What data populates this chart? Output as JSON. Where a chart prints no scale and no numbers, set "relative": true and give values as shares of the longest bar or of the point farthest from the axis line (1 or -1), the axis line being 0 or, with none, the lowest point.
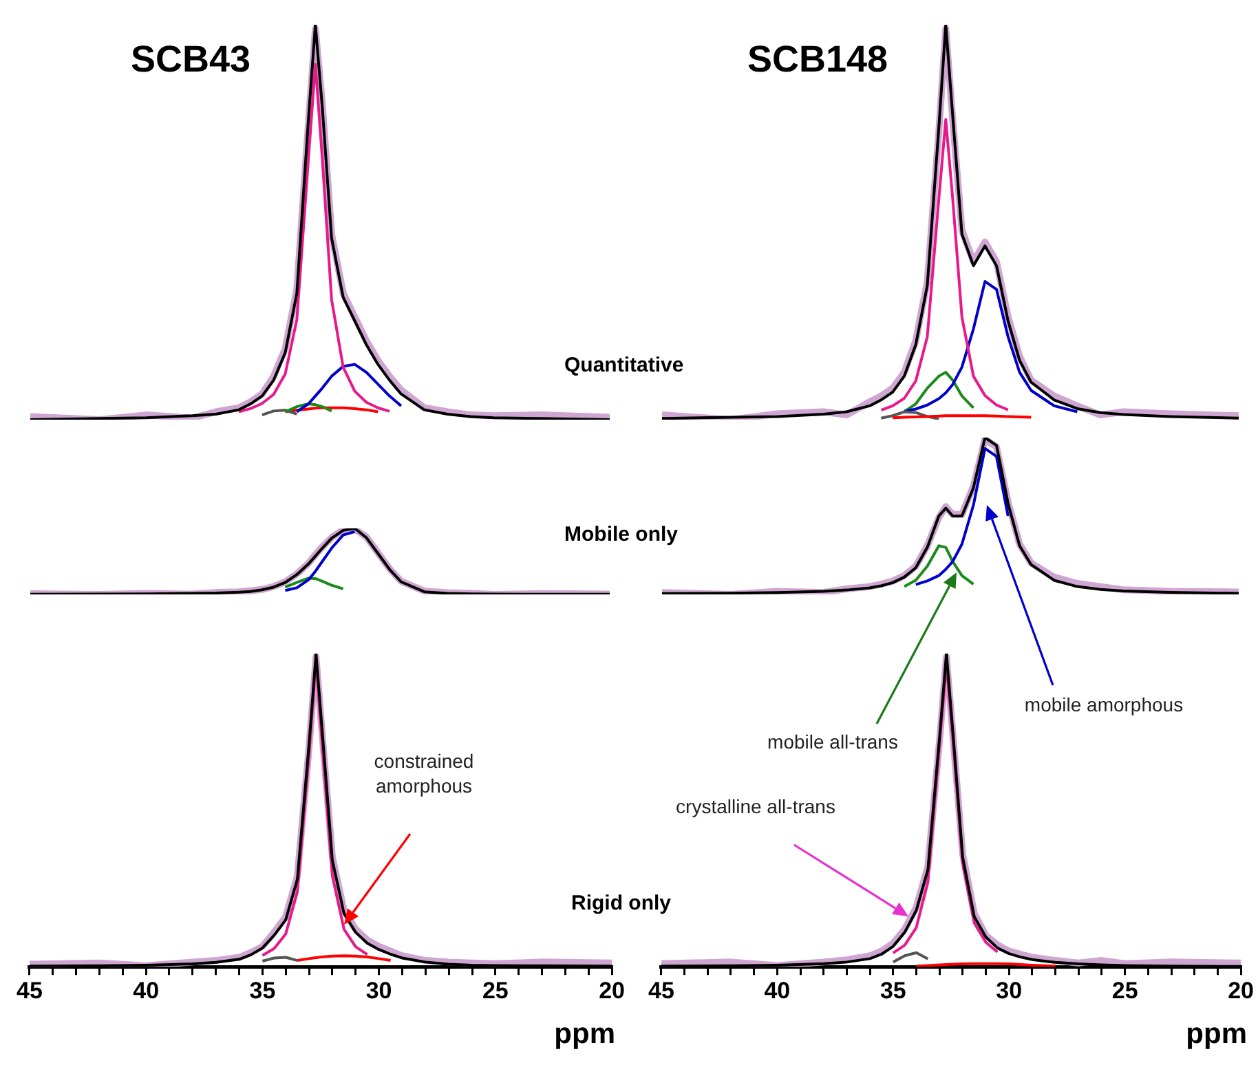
{
  "chart_data": [
    {
      "type": "line",
      "title": "SCB43",
      "relative": true,
      "xlim": [
        45,
        20
      ],
      "tick_labels": false,
      "legend": false,
      "grid": false,
      "x": [
        45,
        42,
        40,
        38,
        37,
        36,
        35.5,
        35,
        34.5,
        34,
        33.5,
        33,
        32.7,
        32.4,
        32,
        31.5,
        31,
        30.5,
        30,
        29.5,
        29,
        28,
        27,
        26,
        25,
        23,
        20
      ],
      "series": [
        {
          "color": "#cfa6d2",
          "values": [
            0.008,
            0,
            0.012,
            0.004,
            0.02,
            0.03,
            0.045,
            0.065,
            0.11,
            0.18,
            0.33,
            0.75,
            0.99,
            0.8,
            0.47,
            0.32,
            0.26,
            0.2,
            0.15,
            0.11,
            0.075,
            0.03,
            0.02,
            0.012,
            0.01,
            0.012,
            0.006
          ]
        },
        {
          "color": "#ff0000",
          "values": [
            null,
            null,
            null,
            null,
            null,
            null,
            null,
            null,
            null,
            0.02,
            0.024,
            0.027,
            0.029,
            0.03,
            0.03,
            0.03,
            0.028,
            0.025,
            0.02,
            null,
            null,
            null,
            null,
            null,
            null,
            null,
            null
          ]
        },
        {
          "color": "#555555",
          "values": [
            null,
            null,
            null,
            null,
            null,
            null,
            null,
            0.012,
            0.022,
            0.024,
            0.014,
            null,
            null,
            null,
            null,
            null,
            null,
            null,
            null,
            null,
            null,
            null,
            null,
            null,
            null,
            null,
            null
          ]
        },
        {
          "color": "#1a8a1a",
          "values": [
            null,
            null,
            null,
            null,
            null,
            null,
            null,
            null,
            null,
            0.02,
            0.033,
            0.04,
            0.038,
            0.033,
            0.022,
            null,
            null,
            null,
            null,
            null,
            null,
            null,
            null,
            null,
            null,
            null,
            null
          ]
        },
        {
          "color": "#0000cc",
          "values": [
            null,
            null,
            null,
            null,
            null,
            null,
            null,
            null,
            null,
            null,
            0.02,
            0.04,
            0.06,
            0.08,
            0.11,
            0.135,
            0.14,
            0.12,
            0.09,
            0.06,
            0.035,
            null,
            null,
            null,
            null,
            null,
            null
          ]
        },
        {
          "color": "#e8198b",
          "values": [
            null,
            null,
            null,
            null,
            null,
            0.02,
            0.028,
            0.041,
            0.064,
            0.116,
            0.253,
            0.66,
            0.9,
            0.66,
            0.304,
            0.133,
            0.072,
            0.044,
            0.03,
            0.021,
            null,
            null,
            null,
            null,
            null,
            null,
            null
          ]
        },
        {
          "color": "#000000",
          "values": [
            0,
            0.003,
            0.005,
            0.01,
            0.014,
            0.025,
            0.04,
            0.06,
            0.1,
            0.17,
            0.32,
            0.76,
            1,
            0.79,
            0.46,
            0.31,
            0.25,
            0.19,
            0.14,
            0.1,
            0.065,
            0.025,
            0.014,
            0.008,
            0.005,
            0.003,
            0
          ]
        }
      ]
    },
    {
      "type": "line",
      "title": "SCB148",
      "relative": true,
      "xlim": [
        45,
        20
      ],
      "tick_labels": false,
      "legend": false,
      "grid": false,
      "annotations": [
        "Quantitative"
      ],
      "x": [
        45,
        42,
        40,
        38,
        37,
        36,
        35.5,
        35,
        34.5,
        34,
        33.5,
        33,
        32.7,
        32.4,
        32,
        31.5,
        31,
        30.5,
        30,
        29.5,
        29,
        28,
        27,
        26,
        25,
        23,
        20
      ],
      "series": [
        {
          "color": "#cfa6d2",
          "values": [
            0.012,
            0,
            0.015,
            0.02,
            0.012,
            0.045,
            0.06,
            0.08,
            0.12,
            0.2,
            0.35,
            0.73,
            0.99,
            0.76,
            0.48,
            0.4,
            0.45,
            0.4,
            0.26,
            0.16,
            0.1,
            0.06,
            0.035,
            0.012,
            0.02,
            0.015,
            0.01
          ]
        },
        {
          "color": "#1a8a1a",
          "values": [
            null,
            null,
            null,
            null,
            null,
            null,
            null,
            null,
            0.02,
            0.04,
            0.08,
            0.11,
            0.12,
            0.1,
            0.06,
            0.03,
            null,
            null,
            null,
            null,
            null,
            null,
            null,
            null,
            null,
            null,
            null
          ]
        },
        {
          "color": "#0000cc",
          "values": [
            null,
            null,
            null,
            null,
            null,
            null,
            null,
            null,
            0.021,
            0.027,
            0.037,
            0.053,
            0.068,
            0.089,
            0.133,
            0.23,
            0.35,
            0.33,
            0.21,
            0.12,
            0.074,
            0.035,
            0.02,
            null,
            null,
            null,
            null
          ]
        },
        {
          "color": "#e8198b",
          "values": [
            null,
            null,
            null,
            null,
            null,
            null,
            0.024,
            0.035,
            0.054,
            0.098,
            0.21,
            0.56,
            0.76,
            0.56,
            0.26,
            0.11,
            0.061,
            0.037,
            0.025,
            null,
            null,
            null,
            null,
            null,
            null,
            null,
            null
          ]
        },
        {
          "color": "#000000",
          "values": [
            0.003,
            0.006,
            0.008,
            0.014,
            0.02,
            0.035,
            0.05,
            0.07,
            0.11,
            0.19,
            0.34,
            0.74,
            1,
            0.77,
            0.47,
            0.39,
            0.44,
            0.39,
            0.25,
            0.15,
            0.095,
            0.05,
            0.028,
            0.018,
            0.013,
            0.008,
            0.004
          ]
        },
        {
          "color": "#555555",
          "values": [
            null,
            null,
            null,
            null,
            null,
            null,
            0.004,
            0.01,
            0.02,
            0.018,
            0.008,
            0.002,
            null,
            null,
            null,
            null,
            null,
            null,
            null,
            null,
            null,
            null,
            null,
            null,
            null,
            null,
            null
          ]
        },
        {
          "color": "#ff0000",
          "values": [
            null,
            null,
            null,
            null,
            null,
            null,
            null,
            0.005,
            0.006,
            0.007,
            0.008,
            0.009,
            0.01,
            0.01,
            0.01,
            0.01,
            0.01,
            0.009,
            0.008,
            0.007,
            0.006,
            null,
            null,
            null,
            null,
            null,
            null
          ]
        }
      ]
    },
    {
      "type": "line",
      "relative": true,
      "xlim": [
        45,
        20
      ],
      "tick_labels": false,
      "legend": false,
      "grid": false,
      "x": [
        45,
        42,
        40,
        38,
        37,
        36,
        35.5,
        35,
        34.5,
        34,
        33.5,
        33,
        32.7,
        32.4,
        32,
        31.5,
        31,
        30.5,
        30,
        29.5,
        29,
        28,
        27,
        26,
        25,
        23,
        20
      ],
      "series": [
        {
          "color": "#cfa6d2",
          "values": [
            0.01,
            0,
            0.015,
            0.005,
            0.03,
            0.04,
            0.055,
            0.075,
            0.12,
            0.19,
            0.31,
            0.47,
            0.6,
            0.72,
            0.86,
            0.98,
            0.99,
            0.87,
            0.63,
            0.39,
            0.2,
            0.05,
            0.025,
            0.015,
            0,
            0.012,
            0.006
          ]
        },
        {
          "color": "#1a8a1a",
          "values": [
            null,
            null,
            null,
            null,
            null,
            null,
            null,
            null,
            null,
            0.11,
            0.18,
            0.245,
            0.24,
            0.2,
            0.14,
            0.085,
            null,
            null,
            null,
            null,
            null,
            null,
            null,
            null,
            null,
            null,
            null
          ]
        },
        {
          "color": "#0000cc",
          "values": [
            null,
            null,
            null,
            null,
            null,
            null,
            null,
            null,
            null,
            0.06,
            0.1,
            0.22,
            0.35,
            0.5,
            0.7,
            0.9,
            0.95,
            null,
            null,
            null,
            null,
            null,
            null,
            null,
            null,
            null,
            null
          ]
        },
        {
          "color": "#000000",
          "values": [
            0.002,
            0.005,
            0.008,
            0.015,
            0.02,
            0.035,
            0.045,
            0.07,
            0.11,
            0.18,
            0.3,
            0.46,
            0.58,
            0.7,
            0.85,
            0.97,
            1,
            0.86,
            0.62,
            0.38,
            0.19,
            0.04,
            0.015,
            0.008,
            0.005,
            0.003,
            0.002
          ]
        }
      ]
    },
    {
      "type": "line",
      "relative": true,
      "xlim": [
        45,
        20
      ],
      "tick_labels": false,
      "legend": false,
      "grid": false,
      "annotations": [
        "Mobile only",
        "mobile all-trans",
        "mobile amorphous"
      ],
      "x": [
        45,
        42,
        40,
        38,
        37,
        36,
        35.5,
        35,
        34.5,
        34,
        33.5,
        33,
        32.7,
        32.4,
        32,
        31.5,
        31,
        30.5,
        30,
        29.5,
        29,
        28,
        27,
        26,
        25,
        23,
        20
      ],
      "series": [
        {
          "color": "#cfa6d2",
          "values": [
            0.012,
            0,
            0.02,
            0.012,
            0.035,
            0.05,
            0.065,
            0.085,
            0.12,
            0.18,
            0.31,
            0.49,
            0.56,
            0.51,
            0.51,
            0.69,
            0.99,
            0.94,
            0.59,
            0.32,
            0.2,
            0.11,
            0.07,
            0.05,
            0.03,
            0.02,
            0.015
          ]
        },
        {
          "color": "#1a8a1a",
          "values": [
            null,
            null,
            null,
            null,
            null,
            null,
            null,
            null,
            0.05,
            0.09,
            0.18,
            0.31,
            0.3,
            0.21,
            0.12,
            0.065,
            null,
            null,
            null,
            null,
            null,
            null,
            null,
            null,
            null,
            null,
            null
          ]
        },
        {
          "color": "#0000cc",
          "values": [
            null,
            null,
            null,
            null,
            null,
            null,
            null,
            null,
            null,
            0.063,
            0.086,
            0.12,
            0.16,
            0.21,
            0.32,
            0.57,
            0.93,
            0.88,
            0.5,
            null,
            null,
            null,
            null,
            null,
            null,
            null,
            null
          ]
        },
        {
          "color": "#000000",
          "values": [
            0.005,
            0.008,
            0.012,
            0.02,
            0.028,
            0.042,
            0.055,
            0.075,
            0.11,
            0.17,
            0.3,
            0.5,
            0.55,
            0.5,
            0.5,
            0.68,
            1,
            0.95,
            0.58,
            0.31,
            0.19,
            0.09,
            0.05,
            0.032,
            0.022,
            0.013,
            0.007
          ]
        }
      ]
    },
    {
      "type": "line",
      "relative": true,
      "xlim": [
        45,
        20
      ],
      "tick_labels": "x",
      "legend": false,
      "grid": false,
      "xlabel": "ppm",
      "annotations": [
        "constrained amorphous"
      ],
      "xticks": [
        45,
        {
          "value": 44,
          "label": null
        },
        {
          "value": 43,
          "label": null
        },
        {
          "value": 42,
          "label": null
        },
        {
          "value": 41,
          "label": null
        },
        40,
        {
          "value": 39,
          "label": null
        },
        {
          "value": 38,
          "label": null
        },
        {
          "value": 37,
          "label": null
        },
        {
          "value": 36,
          "label": null
        },
        35,
        {
          "value": 34,
          "label": null
        },
        {
          "value": 33,
          "label": null
        },
        {
          "value": 32,
          "label": null
        },
        {
          "value": 31,
          "label": null
        },
        30,
        {
          "value": 29,
          "label": null
        },
        {
          "value": 28,
          "label": null
        },
        {
          "value": 27,
          "label": null
        },
        {
          "value": 26,
          "label": null
        },
        25,
        {
          "value": 24,
          "label": null
        },
        {
          "value": 23,
          "label": null
        },
        {
          "value": 22,
          "label": null
        },
        {
          "value": 21,
          "label": null
        },
        20
      ],
      "x": [
        45,
        42,
        40,
        38,
        37,
        36,
        35.5,
        35,
        34.5,
        34,
        33.5,
        33,
        32.7,
        32.4,
        32,
        31.5,
        31,
        30.5,
        30,
        29.5,
        29,
        28,
        27,
        26,
        25,
        23,
        20
      ],
      "series": [
        {
          "color": "#cfa6d2",
          "values": [
            0.008,
            0.012,
            0.003,
            0.015,
            0.02,
            0.03,
            0.045,
            0.065,
            0.11,
            0.16,
            0.29,
            0.7,
            0.99,
            0.71,
            0.35,
            0.18,
            0.12,
            0.085,
            0.065,
            0.05,
            0.035,
            0.02,
            0.015,
            0.012,
            0.01,
            0.015,
            0.012
          ]
        },
        {
          "color": "#ff0000",
          "values": [
            null,
            null,
            null,
            null,
            null,
            null,
            null,
            null,
            null,
            null,
            0.02,
            0.026,
            0.029,
            0.032,
            0.034,
            0.035,
            0.034,
            0.031,
            0.026,
            0.02,
            null,
            null,
            null,
            null,
            null,
            null,
            null
          ]
        },
        {
          "color": "#555555",
          "values": [
            null,
            null,
            null,
            null,
            null,
            null,
            null,
            0.018,
            0.028,
            0.03,
            0.02,
            null,
            null,
            null,
            null,
            null,
            null,
            null,
            null,
            null,
            null,
            null,
            null,
            null,
            null,
            null,
            null
          ]
        },
        {
          "color": "#e8198b",
          "values": [
            null,
            null,
            null,
            null,
            null,
            null,
            null,
            0.036,
            0.058,
            0.105,
            0.24,
            0.68,
            0.98,
            0.68,
            0.29,
            0.12,
            0.064,
            0.039,
            null,
            null,
            null,
            null,
            null,
            null,
            null,
            null,
            null
          ]
        },
        {
          "color": "#000000",
          "values": [
            0.002,
            0.003,
            0.005,
            0.009,
            0.014,
            0.024,
            0.038,
            0.06,
            0.1,
            0.15,
            0.28,
            0.71,
            1,
            0.72,
            0.34,
            0.17,
            0.11,
            0.075,
            0.055,
            0.04,
            0.028,
            0.015,
            0.008,
            0.005,
            0.004,
            0.003,
            0.002
          ]
        }
      ]
    },
    {
      "type": "line",
      "relative": true,
      "xlim": [
        45,
        20
      ],
      "tick_labels": "x",
      "legend": false,
      "grid": false,
      "xlabel": "ppm",
      "annotations": [
        "Rigid only",
        "crystalline all-trans"
      ],
      "xticks": [
        45,
        {
          "value": 44,
          "label": null
        },
        {
          "value": 43,
          "label": null
        },
        {
          "value": 42,
          "label": null
        },
        {
          "value": 41,
          "label": null
        },
        40,
        {
          "value": 39,
          "label": null
        },
        {
          "value": 38,
          "label": null
        },
        {
          "value": 37,
          "label": null
        },
        {
          "value": 36,
          "label": null
        },
        35,
        {
          "value": 34,
          "label": null
        },
        {
          "value": 33,
          "label": null
        },
        {
          "value": 32,
          "label": null
        },
        {
          "value": 31,
          "label": null
        },
        30,
        {
          "value": 29,
          "label": null
        },
        {
          "value": 28,
          "label": null
        },
        {
          "value": 27,
          "label": null
        },
        {
          "value": 26,
          "label": null
        },
        25,
        {
          "value": 24,
          "label": null
        },
        {
          "value": 23,
          "label": null
        },
        {
          "value": 22,
          "label": null
        },
        {
          "value": 21,
          "label": null
        },
        20
      ],
      "x": [
        45,
        42,
        40,
        38,
        37,
        36,
        35.5,
        35,
        34.5,
        34,
        33.5,
        33,
        32.7,
        32.4,
        32,
        31.5,
        31,
        30.5,
        30,
        29.5,
        29,
        28,
        27,
        26,
        25,
        23,
        20
      ],
      "series": [
        {
          "color": "#cfa6d2",
          "values": [
            0.01,
            0.015,
            0.004,
            0.015,
            0.022,
            0.035,
            0.05,
            0.075,
            0.12,
            0.19,
            0.32,
            0.72,
            0.99,
            0.72,
            0.36,
            0.17,
            0.1,
            0.07,
            0.05,
            0.04,
            0.03,
            0.02,
            0.012,
            0.02,
            0.01,
            0.015,
            0.012
          ]
        },
        {
          "color": "#555555",
          "values": [
            null,
            null,
            null,
            null,
            null,
            null,
            null,
            0.015,
            0.035,
            0.045,
            0.025,
            null,
            null,
            null,
            null,
            null,
            null,
            null,
            null,
            null,
            null,
            null,
            null,
            null,
            null,
            null,
            null
          ]
        },
        {
          "color": "#e8198b",
          "values": [
            null,
            null,
            null,
            null,
            null,
            null,
            null,
            0.044,
            0.069,
            0.125,
            0.27,
            0.71,
            0.97,
            0.71,
            0.33,
            0.14,
            0.078,
            0.047,
            null,
            null,
            null,
            null,
            null,
            null,
            null,
            null,
            null
          ]
        },
        {
          "color": "#000000",
          "values": [
            0.002,
            0.003,
            0.005,
            0.01,
            0.015,
            0.026,
            0.04,
            0.065,
            0.11,
            0.18,
            0.31,
            0.73,
            1,
            0.73,
            0.35,
            0.16,
            0.095,
            0.06,
            0.042,
            0.031,
            0.023,
            0.014,
            0.009,
            0.006,
            0.004,
            0.002,
            0.001
          ]
        },
        {
          "color": "#ff0000",
          "values": [
            null,
            null,
            null,
            null,
            null,
            null,
            null,
            null,
            null,
            0.002,
            0.004,
            0.006,
            0.007,
            0.008,
            0.009,
            0.01,
            0.01,
            0.01,
            0.009,
            0.007,
            0.005,
            0.002,
            null,
            null,
            null,
            null,
            null
          ]
        }
      ]
    }
  ]
}
